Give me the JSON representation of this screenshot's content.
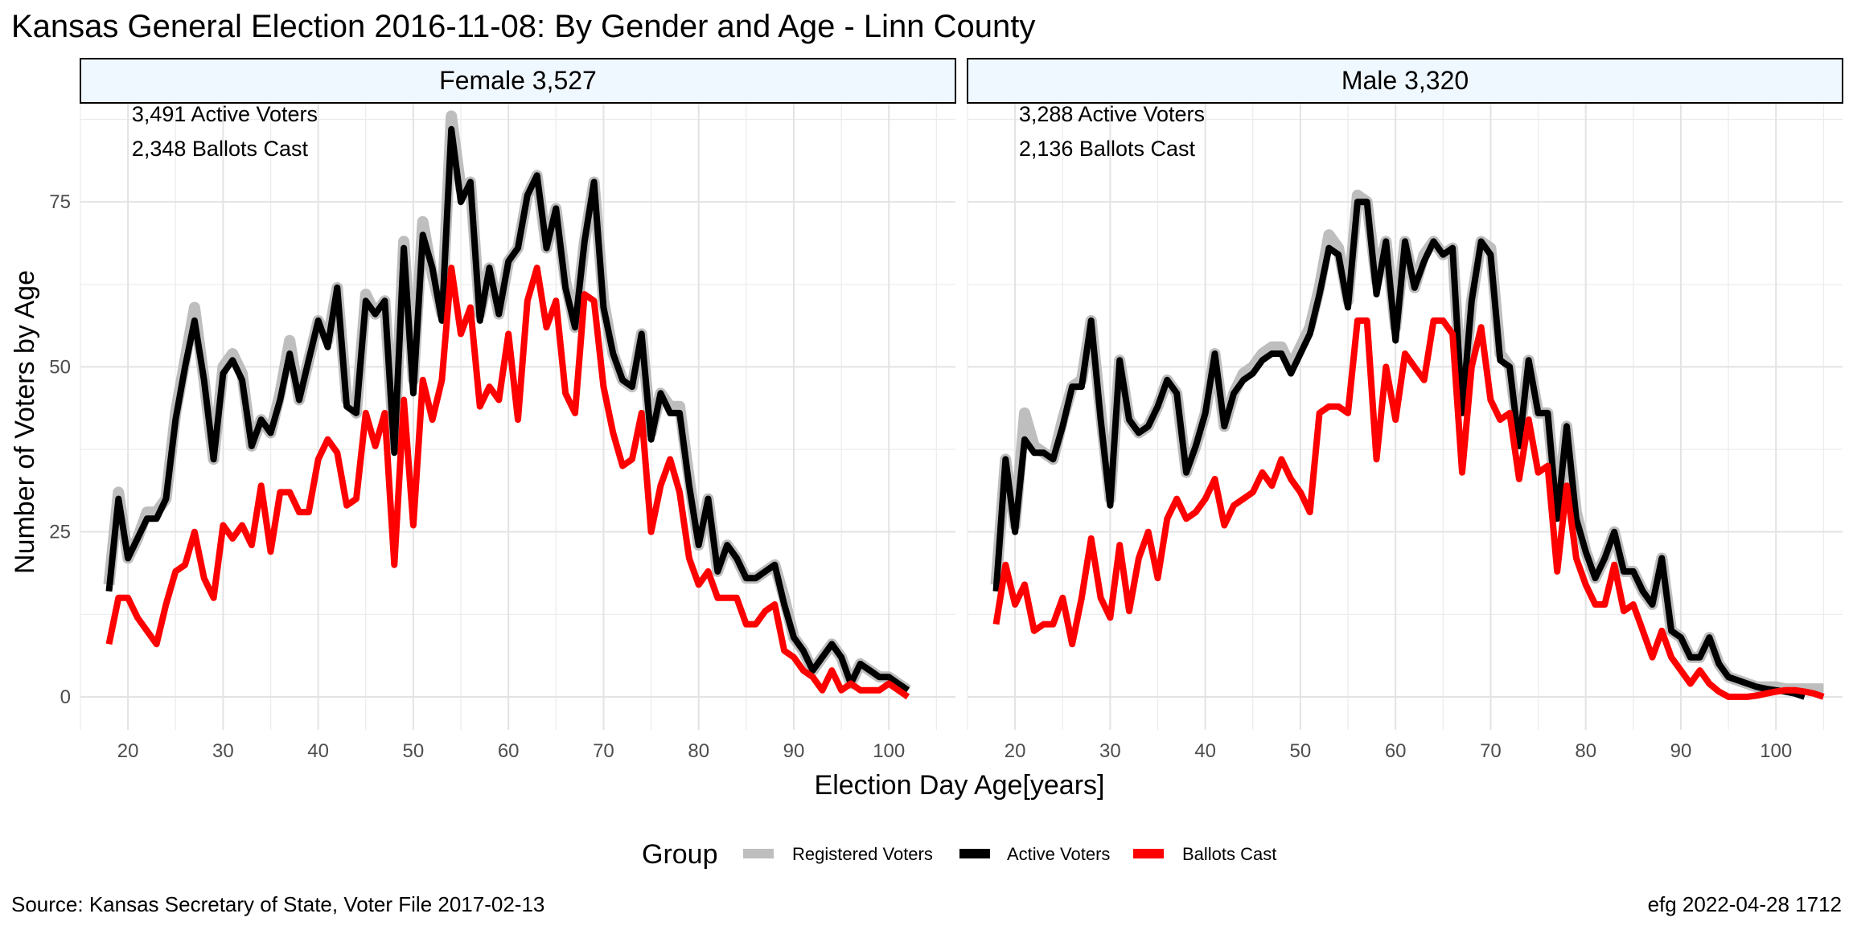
{
  "title": "Kansas General Election 2016-11-08:  By Gender and Age - Linn County",
  "source": "Source:  Kansas Secretary of State, Voter File  2017-02-13",
  "credit": "efg 2022-04-28 1712",
  "legend": {
    "title": "Group",
    "items": [
      {
        "label": "Registered Voters",
        "color": "#bebebe"
      },
      {
        "label": "Active Voters",
        "color": "#000000"
      },
      {
        "label": "Ballots Cast",
        "color": "#ff0000"
      }
    ]
  },
  "chart_data": {
    "type": "line",
    "xlabel": "Election Day Age[years]",
    "ylabel": "Number of Voters by Age",
    "xlim": [
      15,
      107
    ],
    "ylim": [
      -5,
      90
    ],
    "xticks": [
      20,
      30,
      40,
      50,
      60,
      70,
      80,
      90,
      100
    ],
    "yticks": [
      0,
      25,
      50,
      75
    ],
    "grid": true,
    "legend_position": "bottom",
    "strip_fill": "#f0f8ff",
    "panels": [
      {
        "name": "Female 3,527",
        "annotations": [
          "3,491 Active Voters",
          "2,348 Ballots Cast"
        ],
        "x_start": 18,
        "series": [
          {
            "name": "Registered Voters",
            "color": "#bebebe",
            "values": [
              17,
              31,
              21,
              24,
              28,
              28,
              30,
              43,
              51,
              59,
              48,
              36,
              50,
              52,
              49,
              38,
              42,
              40,
              46,
              54,
              45,
              51,
              57,
              54,
              62,
              45,
              43,
              61,
              58,
              60,
              38,
              69,
              48,
              72,
              64,
              58,
              88,
              77,
              78,
              58,
              65,
              58,
              66,
              68,
              76,
              79,
              68,
              74,
              63,
              56,
              69,
              78,
              60,
              52,
              48,
              47,
              55,
              40,
              46,
              44,
              44,
              33,
              23,
              30,
              19,
              23,
              21,
              18,
              18,
              19,
              20,
              15,
              9,
              7,
              4,
              6,
              8,
              6,
              2,
              5,
              4,
              3,
              3,
              2,
              1
            ],
            "width": 14
          },
          {
            "name": "Active Voters",
            "color": "#000000",
            "values": [
              16,
              30,
              21,
              24,
              27,
              27,
              30,
              42,
              50,
              57,
              48,
              36,
              49,
              51,
              48,
              38,
              42,
              40,
              45,
              52,
              45,
              51,
              57,
              53,
              62,
              44,
              43,
              60,
              58,
              60,
              37,
              68,
              46,
              70,
              65,
              57,
              86,
              75,
              78,
              57,
              65,
              58,
              66,
              68,
              76,
              79,
              68,
              74,
              62,
              56,
              69,
              78,
              59,
              52,
              48,
              47,
              55,
              39,
              46,
              43,
              43,
              32,
              23,
              30,
              19,
              23,
              21,
              18,
              18,
              19,
              20,
              14,
              9,
              7,
              4,
              6,
              8,
              6,
              2,
              5,
              4,
              3,
              3,
              2,
              1
            ],
            "width": 8
          },
          {
            "name": "Ballots Cast",
            "color": "#ff0000",
            "values": [
              8,
              15,
              15,
              12,
              10,
              8,
              14,
              19,
              20,
              25,
              18,
              15,
              26,
              24,
              26,
              23,
              32,
              22,
              31,
              31,
              28,
              28,
              36,
              39,
              37,
              29,
              30,
              43,
              38,
              43,
              20,
              45,
              26,
              48,
              42,
              48,
              65,
              55,
              59,
              44,
              47,
              45,
              55,
              42,
              60,
              65,
              56,
              60,
              46,
              43,
              61,
              60,
              47,
              40,
              35,
              36,
              43,
              25,
              32,
              36,
              31,
              21,
              17,
              19,
              15,
              15,
              15,
              11,
              11,
              13,
              14,
              7,
              6,
              4,
              3,
              1,
              4,
              1,
              2,
              1,
              1,
              1,
              2,
              1,
              0
            ],
            "width": 8
          }
        ]
      },
      {
        "name": "Male 3,320",
        "annotations": [
          "3,288 Active Voters",
          "2,136 Ballots Cast"
        ],
        "x_start": 18,
        "series": [
          {
            "name": "Registered Voters",
            "color": "#bebebe",
            "values": [
              17,
              36,
              26,
              43,
              38,
              37,
              36,
              42,
              47,
              48,
              57,
              43,
              30,
              51,
              42,
              40,
              41,
              44,
              48,
              46,
              34,
              38,
              43,
              52,
              41,
              46,
              49,
              50,
              52,
              53,
              53,
              50,
              53,
              56,
              62,
              70,
              68,
              60,
              76,
              75,
              63,
              69,
              56,
              69,
              62,
              67,
              69,
              67,
              68,
              44,
              60,
              69,
              68,
              52,
              50,
              39,
              51,
              43,
              43,
              28,
              41,
              28,
              22,
              18,
              21,
              25,
              19,
              19,
              16,
              14,
              21,
              10,
              9,
              6,
              6,
              9,
              5,
              3,
              2.5,
              2,
              1.5,
              1.5,
              1.5,
              1.2,
              1.2,
              1.2,
              1.2,
              1.2
            ],
            "width": 14
          },
          {
            "name": "Active Voters",
            "color": "#000000",
            "values": [
              16,
              36,
              25,
              39,
              37,
              37,
              36,
              41,
              47,
              47,
              57,
              42,
              29,
              51,
              42,
              40,
              41,
              44,
              48,
              46,
              34,
              38,
              43,
              52,
              41,
              46,
              48,
              49,
              51,
              52,
              52,
              49,
              52,
              55,
              61,
              68,
              67,
              59,
              75,
              75,
              61,
              69,
              54,
              69,
              62,
              66,
              69,
              67,
              68,
              43,
              60,
              69,
              67,
              51,
              50,
              38,
              51,
              43,
              43,
              27,
              41,
              27,
              22,
              18,
              21,
              25,
              19,
              19,
              16,
              14,
              21,
              10,
              9,
              6,
              6,
              9,
              5,
              3,
              2.5,
              2,
              1.5,
              1.2,
              1,
              0.8,
              0.5,
              0
            ],
            "width": 8
          },
          {
            "name": "Ballots Cast",
            "color": "#ff0000",
            "values": [
              11,
              20,
              14,
              17,
              10,
              11,
              11,
              15,
              8,
              15,
              24,
              15,
              12,
              23,
              13,
              21,
              25,
              18,
              27,
              30,
              27,
              28,
              30,
              33,
              26,
              29,
              30,
              31,
              34,
              32,
              36,
              33,
              31,
              28,
              43,
              44,
              44,
              43,
              57,
              57,
              36,
              50,
              42,
              52,
              50,
              48,
              57,
              57,
              55,
              34,
              50,
              56,
              45,
              42,
              43,
              33,
              42,
              34,
              35,
              19,
              32,
              21,
              17,
              14,
              14,
              20,
              13,
              14,
              10,
              6,
              10,
              6,
              4,
              2,
              4,
              2,
              0.8,
              0,
              0,
              0,
              0.2,
              0.5,
              0.8,
              1,
              1,
              0.8,
              0.5,
              0
            ],
            "width": 8
          }
        ]
      }
    ]
  }
}
